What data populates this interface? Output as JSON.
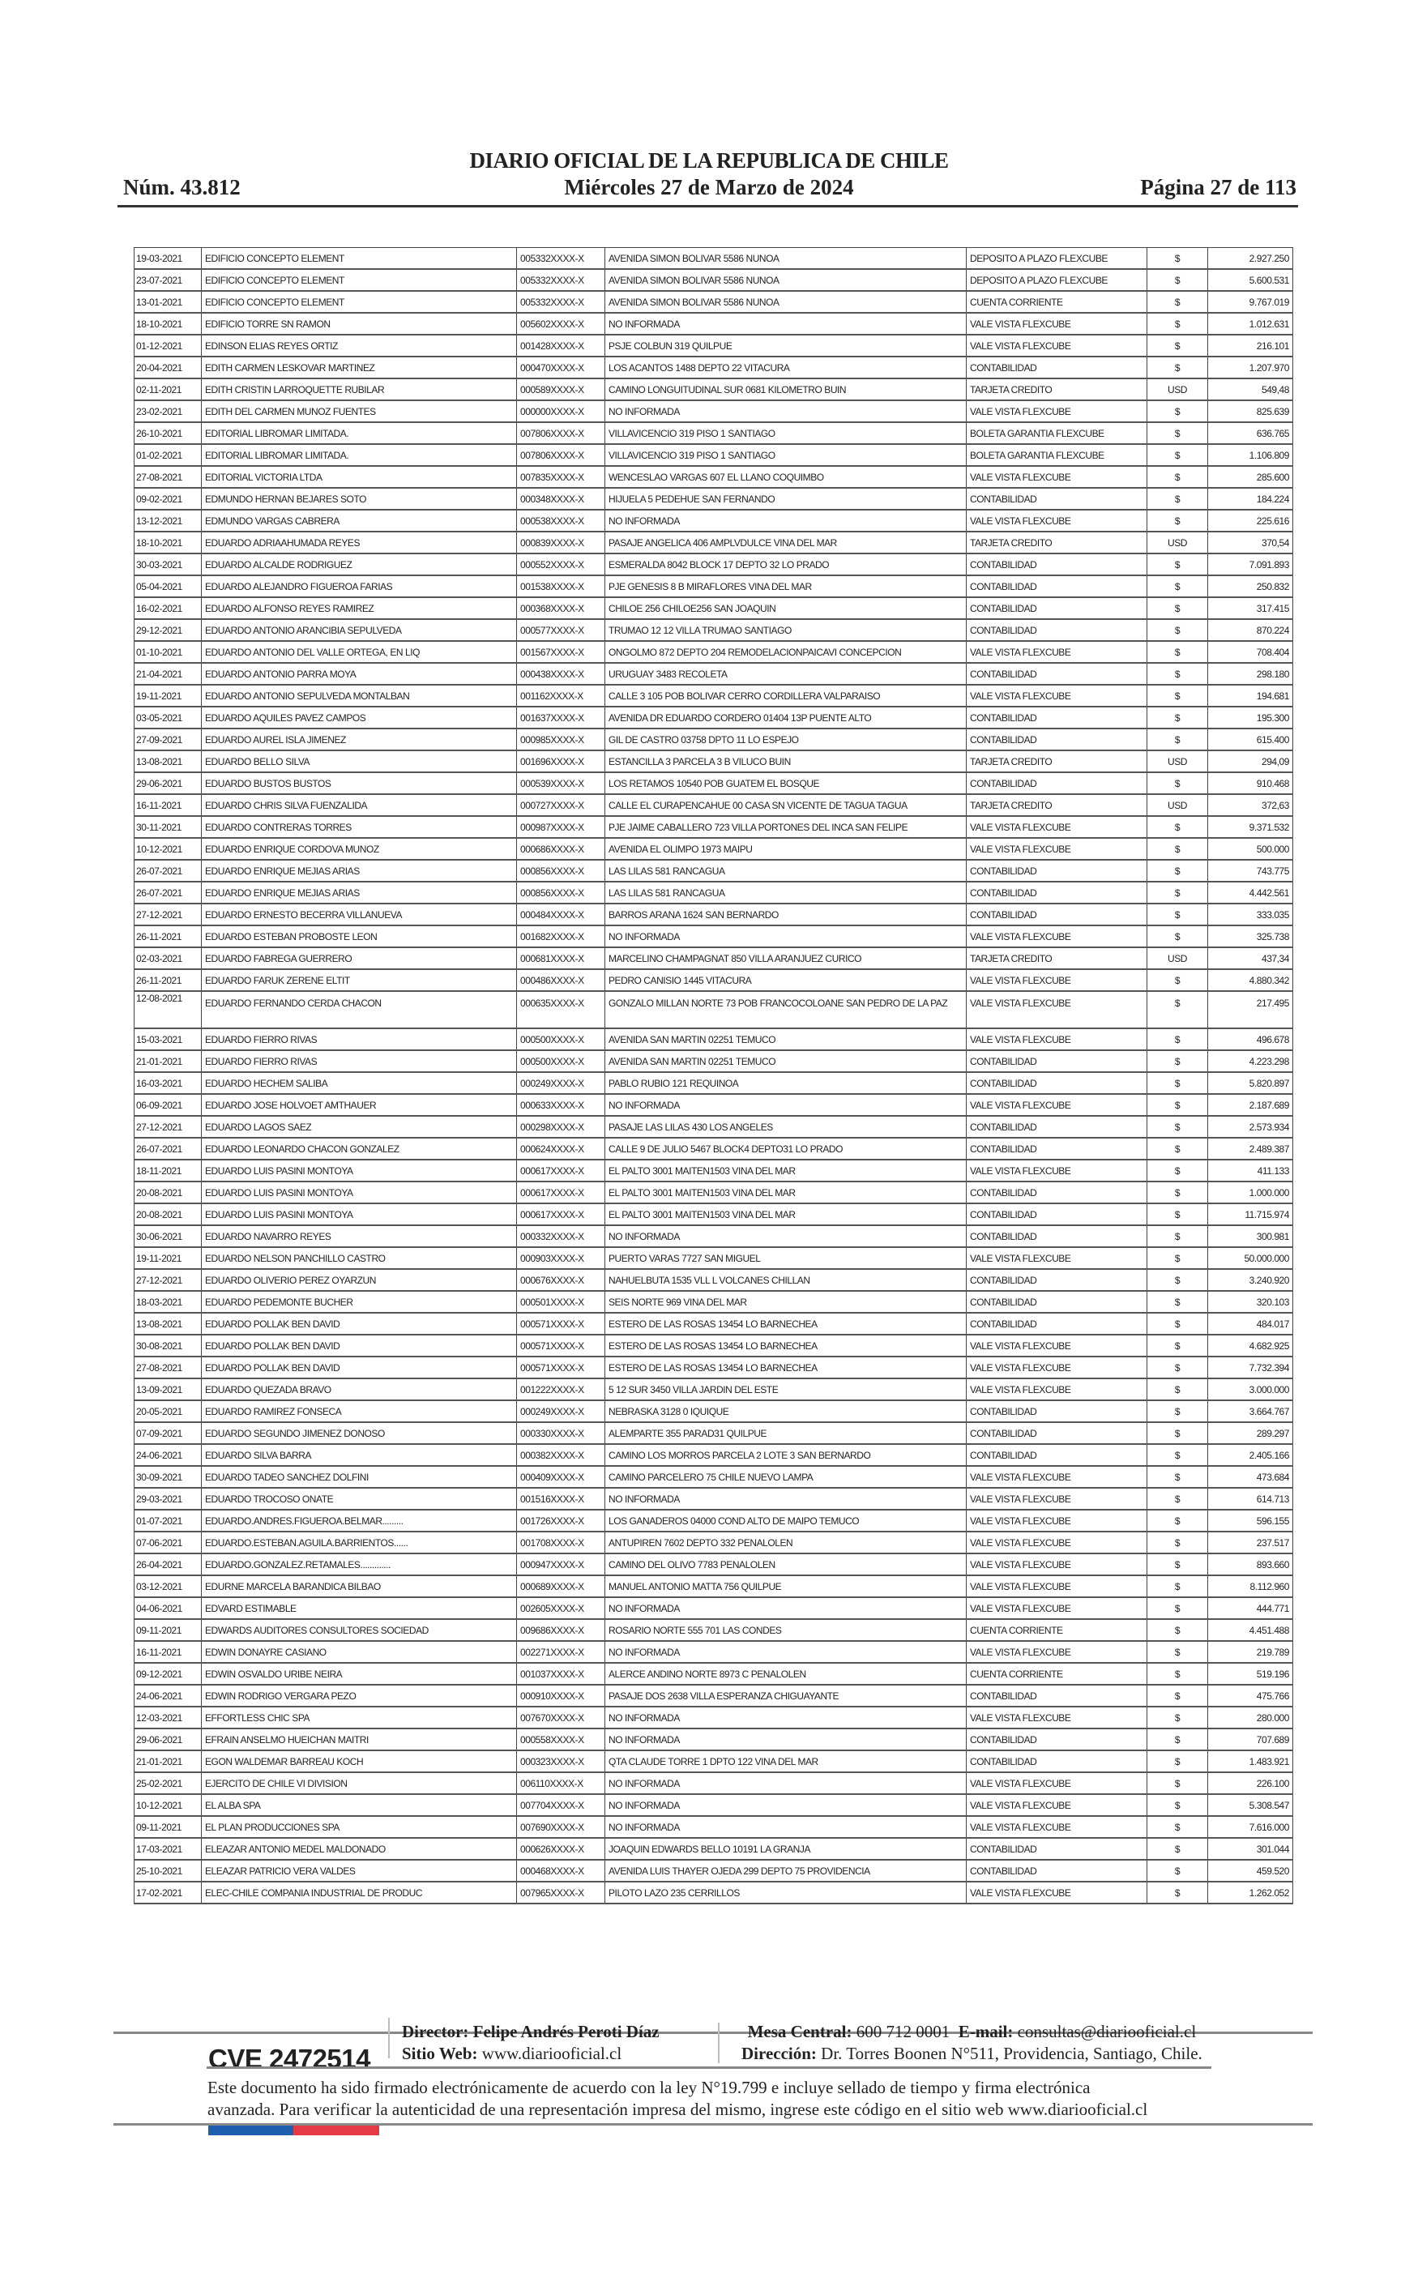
{
  "header": {
    "title": "DIARIO OFICIAL DE LA REPUBLICA DE CHILE",
    "number": "Núm. 43.812",
    "date": "Miércoles 27 de Marzo de 2024",
    "page": "Página 27 de 113"
  },
  "table": {
    "rows": [
      [
        "19-03-2021",
        "EDIFICIO CONCEPTO ELEMENT",
        "005332XXXX-X",
        "AVENIDA SIMON BOLIVAR 5586 NUNOA",
        "DEPOSITO A PLAZO FLEXCUBE",
        "$",
        "2.927.250"
      ],
      [
        "23-07-2021",
        "EDIFICIO CONCEPTO ELEMENT",
        "005332XXXX-X",
        "AVENIDA SIMON BOLIVAR 5586 NUNOA",
        "DEPOSITO A PLAZO FLEXCUBE",
        "$",
        "5.600.531"
      ],
      [
        "13-01-2021",
        "EDIFICIO CONCEPTO ELEMENT",
        "005332XXXX-X",
        "AVENIDA SIMON BOLIVAR 5586 NUNOA",
        "CUENTA CORRIENTE",
        "$",
        "9.767.019"
      ],
      [
        "18-10-2021",
        "EDIFICIO TORRE SN RAMON",
        "005602XXXX-X",
        "NO INFORMADA",
        "VALE VISTA FLEXCUBE",
        "$",
        "1.012.631"
      ],
      [
        "01-12-2021",
        "EDINSON ELIAS REYES ORTIZ",
        "001428XXXX-X",
        "PSJE COLBUN 319 QUILPUE",
        "VALE VISTA FLEXCUBE",
        "$",
        "216.101"
      ],
      [
        "20-04-2021",
        "EDITH CARMEN LESKOVAR MARTINEZ",
        "000470XXXX-X",
        "LOS ACANTOS 1488 DEPTO 22 VITACURA",
        "CONTABILIDAD",
        "$",
        "1.207.970"
      ],
      [
        "02-11-2021",
        "EDITH CRISTIN LARROQUETTE RUBILAR",
        "000589XXXX-X",
        "CAMINO LONGUITUDINAL SUR 0681 KILOMETRO BUIN",
        "TARJETA CREDITO",
        "USD",
        "549,48"
      ],
      [
        "23-02-2021",
        "EDITH DEL CARMEN MUNOZ FUENTES",
        "000000XXXX-X",
        "NO INFORMADA",
        "VALE VISTA FLEXCUBE",
        "$",
        "825.639"
      ],
      [
        "26-10-2021",
        "EDITORIAL LIBROMAR LIMITADA.",
        "007806XXXX-X",
        "VILLAVICENCIO 319 PISO 1 SANTIAGO",
        "BOLETA GARANTIA FLEXCUBE",
        "$",
        "636.765"
      ],
      [
        "01-02-2021",
        "EDITORIAL LIBROMAR LIMITADA.",
        "007806XXXX-X",
        "VILLAVICENCIO 319 PISO 1 SANTIAGO",
        "BOLETA GARANTIA FLEXCUBE",
        "$",
        "1.106.809"
      ],
      [
        "27-08-2021",
        "EDITORIAL VICTORIA LTDA",
        "007835XXXX-X",
        "WENCESLAO VARGAS 607 EL LLANO COQUIMBO",
        "VALE VISTA FLEXCUBE",
        "$",
        "285.600"
      ],
      [
        "09-02-2021",
        "EDMUNDO HERNAN BEJARES SOTO",
        "000348XXXX-X",
        "HIJUELA 5 PEDEHUE SAN FERNANDO",
        "CONTABILIDAD",
        "$",
        "184.224"
      ],
      [
        "13-12-2021",
        "EDMUNDO VARGAS CABRERA",
        "000538XXXX-X",
        "NO INFORMADA",
        "VALE VISTA FLEXCUBE",
        "$",
        "225.616"
      ],
      [
        "18-10-2021",
        "EDUARDO ADRIAAHUMADA REYES",
        "000839XXXX-X",
        "PASAJE ANGELICA 406 AMPLVDULCE VINA DEL MAR",
        "TARJETA CREDITO",
        "USD",
        "370,54"
      ],
      [
        "30-03-2021",
        "EDUARDO ALCALDE RODRIGUEZ",
        "000552XXXX-X",
        "ESMERALDA 8042 BLOCK 17 DEPTO 32 LO PRADO",
        "CONTABILIDAD",
        "$",
        "7.091.893"
      ],
      [
        "05-04-2021",
        "EDUARDO ALEJANDRO FIGUEROA FARIAS",
        "001538XXXX-X",
        "PJE GENESIS 8 B MIRAFLORES VINA DEL MAR",
        "CONTABILIDAD",
        "$",
        "250.832"
      ],
      [
        "16-02-2021",
        "EDUARDO ALFONSO REYES RAMIREZ",
        "000368XXXX-X",
        "CHILOE 256 CHILOE256 SAN JOAQUIN",
        "CONTABILIDAD",
        "$",
        "317.415"
      ],
      [
        "29-12-2021",
        "EDUARDO ANTONIO ARANCIBIA SEPULVEDA",
        "000577XXXX-X",
        "TRUMAO 12 12 VILLA TRUMAO SANTIAGO",
        "CONTABILIDAD",
        "$",
        "870.224"
      ],
      [
        "01-10-2021",
        "EDUARDO ANTONIO DEL VALLE ORTEGA, EN LIQ",
        "001567XXXX-X",
        "ONGOLMO 872 DEPTO 204 REMODELACIONPAICAVI CONCEPCION",
        "VALE VISTA FLEXCUBE",
        "$",
        "708.404"
      ],
      [
        "21-04-2021",
        "EDUARDO ANTONIO PARRA MOYA",
        "000438XXXX-X",
        "URUGUAY 3483 RECOLETA",
        "CONTABILIDAD",
        "$",
        "298.180"
      ],
      [
        "19-11-2021",
        "EDUARDO ANTONIO SEPULVEDA MONTALBAN",
        "001162XXXX-X",
        "CALLE 3 105 POB BOLIVAR CERRO CORDILLERA VALPARAISO",
        "VALE VISTA FLEXCUBE",
        "$",
        "194.681"
      ],
      [
        "03-05-2021",
        "EDUARDO AQUILES PAVEZ CAMPOS",
        "001637XXXX-X",
        "AVENIDA DR EDUARDO CORDERO 01404 13P PUENTE ALTO",
        "CONTABILIDAD",
        "$",
        "195.300"
      ],
      [
        "27-09-2021",
        "EDUARDO AUREL ISLA JIMENEZ",
        "000985XXXX-X",
        "GIL DE CASTRO 03758 DPTO 11 LO ESPEJO",
        "CONTABILIDAD",
        "$",
        "615.400"
      ],
      [
        "13-08-2021",
        "EDUARDO BELLO SILVA",
        "001696XXXX-X",
        "ESTANCILLA 3 PARCELA 3 B VILUCO BUIN",
        "TARJETA CREDITO",
        "USD",
        "294,09"
      ],
      [
        "29-06-2021",
        "EDUARDO BUSTOS BUSTOS",
        "000539XXXX-X",
        "LOS RETAMOS 10540 POB GUATEM EL BOSQUE",
        "CONTABILIDAD",
        "$",
        "910.468"
      ],
      [
        "16-11-2021",
        "EDUARDO CHRIS SILVA FUENZALIDA",
        "000727XXXX-X",
        "CALLE EL CURAPENCAHUE 00 CASA SN VICENTE DE TAGUA TAGUA",
        "TARJETA CREDITO",
        "USD",
        "372,63"
      ],
      [
        "30-11-2021",
        "EDUARDO CONTRERAS TORRES",
        "000987XXXX-X",
        "PJE JAIME CABALLERO 723 VILLA PORTONES DEL INCA SAN FELIPE",
        "VALE VISTA FLEXCUBE",
        "$",
        "9.371.532"
      ],
      [
        "10-12-2021",
        "EDUARDO ENRIQUE CORDOVA MUNOZ",
        "000686XXXX-X",
        "AVENIDA EL OLIMPO 1973 MAIPU",
        "VALE VISTA FLEXCUBE",
        "$",
        "500.000"
      ],
      [
        "26-07-2021",
        "EDUARDO ENRIQUE MEJIAS ARIAS",
        "000856XXXX-X",
        "LAS LILAS 581 RANCAGUA",
        "CONTABILIDAD",
        "$",
        "743.775"
      ],
      [
        "26-07-2021",
        "EDUARDO ENRIQUE MEJIAS ARIAS",
        "000856XXXX-X",
        "LAS LILAS 581 RANCAGUA",
        "CONTABILIDAD",
        "$",
        "4.442.561"
      ],
      [
        "27-12-2021",
        "EDUARDO ERNESTO BECERRA VILLANUEVA",
        "000484XXXX-X",
        "BARROS ARANA 1624 SAN BERNARDO",
        "CONTABILIDAD",
        "$",
        "333.035"
      ],
      [
        "26-11-2021",
        "EDUARDO ESTEBAN PROBOSTE LEON",
        "001682XXXX-X",
        "NO INFORMADA",
        "VALE VISTA FLEXCUBE",
        "$",
        "325.738"
      ],
      [
        "02-03-2021",
        "EDUARDO FABREGA GUERRERO",
        "000681XXXX-X",
        "MARCELINO CHAMPAGNAT 850 VILLA ARANJUEZ CURICO",
        "TARJETA CREDITO",
        "USD",
        "437,34"
      ],
      [
        "26-11-2021",
        "EDUARDO FARUK ZERENE ELTIT",
        "000486XXXX-X",
        "PEDRO CANISIO 1445 VITACURA",
        "VALE VISTA FLEXCUBE",
        "$",
        "4.880.342"
      ],
      [
        "12-08-2021",
        "EDUARDO FERNANDO CERDA CHACON",
        "000635XXXX-X",
        "GONZALO MILLAN NORTE 73 POB FRANCOCOLOANE SAN PEDRO DE LA PAZ",
        "VALE VISTA FLEXCUBE",
        "$",
        "217.495"
      ],
      [
        "15-03-2021",
        "EDUARDO FIERRO RIVAS",
        "000500XXXX-X",
        "AVENIDA SAN MARTIN 02251 TEMUCO",
        "VALE VISTA FLEXCUBE",
        "$",
        "496.678"
      ],
      [
        "21-01-2021",
        "EDUARDO FIERRO RIVAS",
        "000500XXXX-X",
        "AVENIDA SAN MARTIN 02251 TEMUCO",
        "CONTABILIDAD",
        "$",
        "4.223.298"
      ],
      [
        "16-03-2021",
        "EDUARDO HECHEM SALIBA",
        "000249XXXX-X",
        "PABLO RUBIO 121 REQUINOA",
        "CONTABILIDAD",
        "$",
        "5.820.897"
      ],
      [
        "06-09-2021",
        "EDUARDO JOSE HOLVOET AMTHAUER",
        "000633XXXX-X",
        "NO INFORMADA",
        "VALE VISTA FLEXCUBE",
        "$",
        "2.187.689"
      ],
      [
        "27-12-2021",
        "EDUARDO LAGOS SAEZ",
        "000298XXXX-X",
        "PASAJE LAS LILAS 430 LOS ANGELES",
        "CONTABILIDAD",
        "$",
        "2.573.934"
      ],
      [
        "26-07-2021",
        "EDUARDO LEONARDO CHACON GONZALEZ",
        "000624XXXX-X",
        "CALLE 9 DE JULIO 5467 BLOCK4 DEPTO31 LO PRADO",
        "CONTABILIDAD",
        "$",
        "2.489.387"
      ],
      [
        "18-11-2021",
        "EDUARDO LUIS PASINI MONTOYA",
        "000617XXXX-X",
        "EL PALTO 3001 MAITEN1503 VINA DEL MAR",
        "VALE VISTA FLEXCUBE",
        "$",
        "411.133"
      ],
      [
        "20-08-2021",
        "EDUARDO LUIS PASINI MONTOYA",
        "000617XXXX-X",
        "EL PALTO 3001 MAITEN1503 VINA DEL MAR",
        "CONTABILIDAD",
        "$",
        "1.000.000"
      ],
      [
        "20-08-2021",
        "EDUARDO LUIS PASINI MONTOYA",
        "000617XXXX-X",
        "EL PALTO 3001 MAITEN1503 VINA DEL MAR",
        "CONTABILIDAD",
        "$",
        "11.715.974"
      ],
      [
        "30-06-2021",
        "EDUARDO NAVARRO REYES",
        "000332XXXX-X",
        "NO INFORMADA",
        "CONTABILIDAD",
        "$",
        "300.981"
      ],
      [
        "19-11-2021",
        "EDUARDO NELSON PANCHILLO CASTRO",
        "000903XXXX-X",
        "PUERTO VARAS 7727 SAN MIGUEL",
        "VALE VISTA FLEXCUBE",
        "$",
        "50.000.000"
      ],
      [
        "27-12-2021",
        "EDUARDO OLIVERIO PEREZ OYARZUN",
        "000676XXXX-X",
        "NAHUELBUTA 1535 VLL L VOLCANES CHILLAN",
        "CONTABILIDAD",
        "$",
        "3.240.920"
      ],
      [
        "18-03-2021",
        "EDUARDO PEDEMONTE BUCHER",
        "000501XXXX-X",
        "SEIS NORTE 969 VINA DEL MAR",
        "CONTABILIDAD",
        "$",
        "320.103"
      ],
      [
        "13-08-2021",
        "EDUARDO POLLAK BEN DAVID",
        "000571XXXX-X",
        "ESTERO DE LAS ROSAS 13454 LO BARNECHEA",
        "CONTABILIDAD",
        "$",
        "484.017"
      ],
      [
        "30-08-2021",
        "EDUARDO POLLAK BEN DAVID",
        "000571XXXX-X",
        "ESTERO DE LAS ROSAS 13454 LO BARNECHEA",
        "VALE VISTA FLEXCUBE",
        "$",
        "4.682.925"
      ],
      [
        "27-08-2021",
        "EDUARDO POLLAK BEN DAVID",
        "000571XXXX-X",
        "ESTERO DE LAS ROSAS 13454 LO BARNECHEA",
        "VALE VISTA FLEXCUBE",
        "$",
        "7.732.394"
      ],
      [
        "13-09-2021",
        "EDUARDO QUEZADA BRAVO",
        "001222XXXX-X",
        "5 12 SUR 3450 VILLA JARDIN DEL ESTE",
        "VALE VISTA FLEXCUBE",
        "$",
        "3.000.000"
      ],
      [
        "20-05-2021",
        "EDUARDO RAMIREZ FONSECA",
        "000249XXXX-X",
        "NEBRASKA 3128 0 IQUIQUE",
        "CONTABILIDAD",
        "$",
        "3.664.767"
      ],
      [
        "07-09-2021",
        "EDUARDO SEGUNDO JIMENEZ DONOSO",
        "000330XXXX-X",
        "ALEMPARTE 355 PARAD31 QUILPUE",
        "CONTABILIDAD",
        "$",
        "289.297"
      ],
      [
        "24-06-2021",
        "EDUARDO SILVA BARRA",
        "000382XXXX-X",
        "CAMINO LOS MORROS PARCELA 2 LOTE 3 SAN BERNARDO",
        "CONTABILIDAD",
        "$",
        "2.405.166"
      ],
      [
        "30-09-2021",
        "EDUARDO TADEO SANCHEZ DOLFINI",
        "000409XXXX-X",
        "CAMINO PARCELERO 75 CHILE NUEVO LAMPA",
        "VALE VISTA FLEXCUBE",
        "$",
        "473.684"
      ],
      [
        "29-03-2021",
        "EDUARDO TROCOSO ONATE",
        "001516XXXX-X",
        "NO INFORMADA",
        "VALE VISTA FLEXCUBE",
        "$",
        "614.713"
      ],
      [
        "01-07-2021",
        "EDUARDO.ANDRES.FIGUEROA.BELMAR.........",
        "001726XXXX-X",
        "LOS GANADEROS 04000 COND ALTO DE MAIPO TEMUCO",
        "VALE VISTA FLEXCUBE",
        "$",
        "596.155"
      ],
      [
        "07-06-2021",
        "EDUARDO.ESTEBAN.AGUILA.BARRIENTOS......",
        "001708XXXX-X",
        "ANTUPIREN 7602 DEPTO 332 PENALOLEN",
        "VALE VISTA FLEXCUBE",
        "$",
        "237.517"
      ],
      [
        "26-04-2021",
        "EDUARDO.GONZALEZ.RETAMALES.............",
        "000947XXXX-X",
        "CAMINO DEL OLIVO 7783 PENALOLEN",
        "VALE VISTA FLEXCUBE",
        "$",
        "893.660"
      ],
      [
        "03-12-2021",
        "EDURNE MARCELA BARANDICA BILBAO",
        "000689XXXX-X",
        "MANUEL ANTONIO MATTA 756 QUILPUE",
        "VALE VISTA FLEXCUBE",
        "$",
        "8.112.960"
      ],
      [
        "04-06-2021",
        "EDVARD ESTIMABLE",
        "002605XXXX-X",
        "NO INFORMADA",
        "VALE VISTA FLEXCUBE",
        "$",
        "444.771"
      ],
      [
        "09-11-2021",
        "EDWARDS AUDITORES CONSULTORES SOCIEDAD",
        "009686XXXX-X",
        "ROSARIO NORTE 555 701 LAS CONDES",
        "CUENTA CORRIENTE",
        "$",
        "4.451.488"
      ],
      [
        "16-11-2021",
        "EDWIN DONAYRE CASIANO",
        "002271XXXX-X",
        "NO INFORMADA",
        "VALE VISTA FLEXCUBE",
        "$",
        "219.789"
      ],
      [
        "09-12-2021",
        "EDWIN OSVALDO URIBE NEIRA",
        "001037XXXX-X",
        "ALERCE ANDINO NORTE 8973 C PENALOLEN",
        "CUENTA CORRIENTE",
        "$",
        "519.196"
      ],
      [
        "24-06-2021",
        "EDWIN RODRIGO VERGARA PEZO",
        "000910XXXX-X",
        "PASAJE DOS 2638 VILLA ESPERANZA CHIGUAYANTE",
        "CONTABILIDAD",
        "$",
        "475.766"
      ],
      [
        "12-03-2021",
        "EFFORTLESS CHIC SPA",
        "007670XXXX-X",
        "NO INFORMADA",
        "VALE VISTA FLEXCUBE",
        "$",
        "280.000"
      ],
      [
        "29-06-2021",
        "EFRAIN ANSELMO HUEICHAN MAITRI",
        "000558XXXX-X",
        "NO INFORMADA",
        "CONTABILIDAD",
        "$",
        "707.689"
      ],
      [
        "21-01-2021",
        "EGON WALDEMAR BARREAU KOCH",
        "000323XXXX-X",
        "QTA CLAUDE TORRE 1 DPTO 122 VINA DEL MAR",
        "CONTABILIDAD",
        "$",
        "1.483.921"
      ],
      [
        "25-02-2021",
        "EJERCITO DE CHILE VI DIVISION",
        "006110XXXX-X",
        "NO INFORMADA",
        "VALE VISTA FLEXCUBE",
        "$",
        "226.100"
      ],
      [
        "10-12-2021",
        "EL ALBA SPA",
        "007704XXXX-X",
        "NO INFORMADA",
        "VALE VISTA FLEXCUBE",
        "$",
        "5.308.547"
      ],
      [
        "09-11-2021",
        "EL PLAN PRODUCCIONES SPA",
        "007690XXXX-X",
        "NO INFORMADA",
        "VALE VISTA FLEXCUBE",
        "$",
        "7.616.000"
      ],
      [
        "17-03-2021",
        "ELEAZAR ANTONIO MEDEL MALDONADO",
        "000626XXXX-X",
        "JOAQUIN EDWARDS BELLO 10191 LA GRANJA",
        "CONTABILIDAD",
        "$",
        "301.044"
      ],
      [
        "25-10-2021",
        "ELEAZAR PATRICIO VERA VALDES",
        "000468XXXX-X",
        "AVENIDA LUIS THAYER OJEDA 299 DEPTO 75 PROVIDENCIA",
        "CONTABILIDAD",
        "$",
        "459.520"
      ],
      [
        "17-02-2021",
        "ELEC-CHILE COMPANIA INDUSTRIAL DE PRODUC",
        "007965XXXX-X",
        "PILOTO LAZO 235 CERRILLOS",
        "VALE VISTA FLEXCUBE",
        "$",
        "1.262.052"
      ]
    ]
  },
  "footer": {
    "cve": "CVE 2472514",
    "director_label": "Director:",
    "director": "Felipe Andrés Peroti Díaz",
    "web_label": "Sitio Web:",
    "web": "www.diariooficial.cl",
    "phone_label": "Mesa Central:",
    "phone": "600 712 0001",
    "email_label": "E-mail:",
    "email": "consultas@diariooficial.cl",
    "address_label": "Dirección:",
    "address": "Dr. Torres Boonen N°511, Providencia, Santiago, Chile.",
    "legal_line1": "Este documento ha sido firmado electrónicamente de acuerdo con la ley N°19.799 e incluye sellado de tiempo y firma electrónica",
    "legal_line2": "avanzada. Para verificar la autenticidad de una representación impresa del mismo, ingrese este código en el sitio web www.diariooficial.cl",
    "flag_colors": [
      "#1f5fb0",
      "#e63946"
    ]
  }
}
